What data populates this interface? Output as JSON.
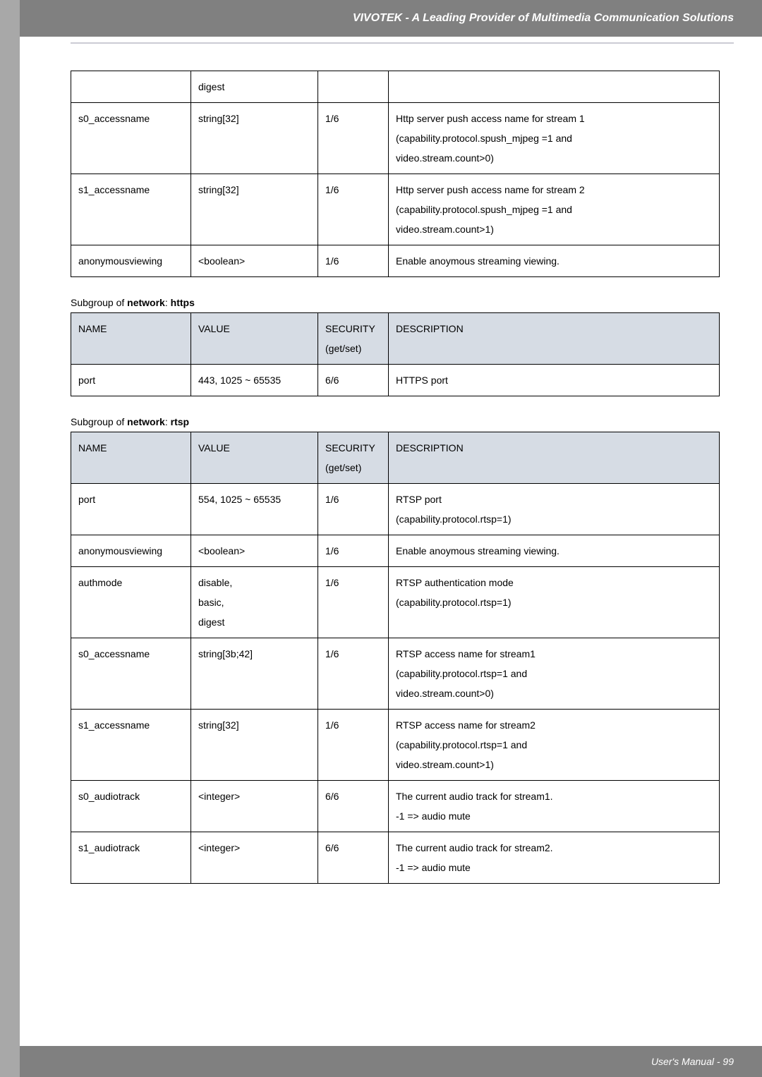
{
  "header": {
    "title": "VIVOTEK - A Leading Provider of Multimedia Communication Solutions"
  },
  "footer": {
    "text": "User's Manual - 99"
  },
  "table1": {
    "rows": [
      {
        "c1": "",
        "c2": "digest",
        "c3": "",
        "c4": ""
      },
      {
        "c1": "s0_accessname",
        "c2": "string[32]",
        "c3": "1/6",
        "c4": "Http server push access name for stream 1\n(capability.protocol.spush_mjpeg =1 and\nvideo.stream.count>0)"
      },
      {
        "c1": "s1_accessname",
        "c2": "string[32]",
        "c3": "1/6",
        "c4": "Http server push access name for stream 2\n(capability.protocol.spush_mjpeg =1 and\nvideo.stream.count>1)"
      },
      {
        "c1": "anonymousviewing",
        "c2": "<boolean>",
        "c3": "1/6",
        "c4": "Enable anoymous streaming viewing."
      }
    ]
  },
  "section2": {
    "prefix": "Subgroup of ",
    "bold1": "network",
    "mid": ": ",
    "bold2": "https"
  },
  "table2": {
    "header": {
      "c1": "NAME",
      "c2": "VALUE",
      "c3a": "SECURITY",
      "c3b": "(get/set)",
      "c4": "DESCRIPTION"
    },
    "rows": [
      {
        "c1": "port",
        "c2": "443, 1025 ~ 65535",
        "c3": "6/6",
        "c4": "HTTPS port"
      }
    ]
  },
  "section3": {
    "prefix": "Subgroup of ",
    "bold1": "network",
    "mid": ": ",
    "bold2": "rtsp"
  },
  "table3": {
    "header": {
      "c1": "NAME",
      "c2": "VALUE",
      "c3a": "SECURITY",
      "c3b": "(get/set)",
      "c4": "DESCRIPTION"
    },
    "rows": [
      {
        "c1": "port",
        "c2": "554, 1025 ~ 65535",
        "c3": "1/6",
        "c4": "RTSP port\n(capability.protocol.rtsp=1)"
      },
      {
        "c1": "anonymousviewing",
        "c2": "<boolean>",
        "c3": "1/6",
        "c4": "Enable anoymous streaming viewing."
      },
      {
        "c1": "authmode",
        "c2": "disable,\nbasic,\ndigest",
        "c3": "1/6",
        "c4": "RTSP authentication mode\n(capability.protocol.rtsp=1)"
      },
      {
        "c1": "s0_accessname",
        "c2": "string[3b;42]",
        "c3": "1/6",
        "c4": "RTSP access name for stream1\n(capability.protocol.rtsp=1 and\nvideo.stream.count>0)"
      },
      {
        "c1": "s1_accessname",
        "c2": "string[32]",
        "c3": "1/6",
        "c4": "RTSP access name for stream2\n(capability.protocol.rtsp=1 and\nvideo.stream.count>1)"
      },
      {
        "c1": "s0_audiotrack",
        "c2": "<integer>",
        "c3": "6/6",
        "c4": "The current audio track for stream1.\n-1 => audio mute"
      },
      {
        "c1": "s1_audiotrack",
        "c2": "<integer>",
        "c3": "6/6",
        "c4": "The current audio track for stream2.\n-1 => audio mute"
      }
    ]
  }
}
